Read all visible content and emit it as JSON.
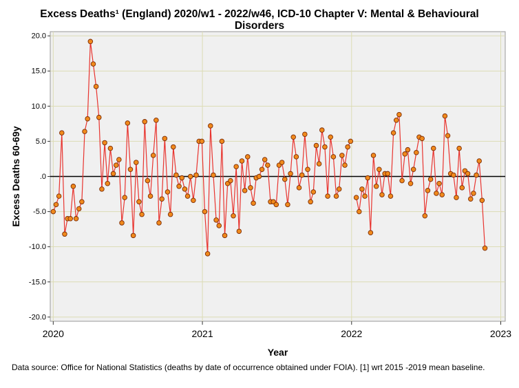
{
  "chart_data": {
    "type": "line",
    "title_line1": "Excess Deaths¹ (England) 2020/w1 - 2022/w46, ICD-10 Chapter V: Mental & Behavioural",
    "title_line2": "Disorders",
    "xlabel": "Year",
    "ylabel": "Excess Deaths 60-69y",
    "xlim": [
      2019.98,
      2023.03
    ],
    "ylim": [
      -20.6,
      20.6
    ],
    "x_ticks": [
      2020,
      2021,
      2022,
      2023
    ],
    "x_tick_labels": [
      "2020",
      "2021",
      "2022",
      "2023"
    ],
    "y_ticks": [
      -20,
      -15,
      -10,
      -5,
      0,
      5,
      10,
      15,
      20
    ],
    "y_tick_labels": [
      "-20.0",
      "-15.0",
      "-10.0",
      "-5.0",
      ".0",
      "5.0",
      "10.0",
      "15.0",
      "20.0"
    ],
    "reference_line": 0,
    "grid": true,
    "line_color": "#e8332e",
    "marker_fill": "#f08a1c",
    "marker_edge": "#7a2a05",
    "series": [
      {
        "name": "Excess deaths 60-69y",
        "start_year": 2020.0,
        "step_weeks": 1,
        "values": [
          -5.0,
          -4.0,
          -2.8,
          6.2,
          -8.2,
          -6.0,
          -6.0,
          -1.4,
          -6.0,
          -4.6,
          -3.6,
          6.4,
          8.2,
          19.2,
          16.0,
          12.8,
          8.4,
          -1.8,
          4.8,
          -1.0,
          4.0,
          0.4,
          1.6,
          2.4,
          -6.6,
          -3.0,
          7.6,
          1.0,
          -8.4,
          2.0,
          -3.6,
          -5.4,
          7.8,
          -0.6,
          -2.8,
          3.0,
          8.0,
          -6.6,
          -3.2,
          5.4,
          -2.2,
          -5.4,
          4.2,
          0.2,
          -1.4,
          -0.2,
          -1.8,
          -2.8,
          0.0,
          -3.4,
          0.2,
          5.0,
          5.0,
          -5.0,
          -11.0,
          7.2,
          0.2,
          -6.2,
          -7.0,
          5.0,
          -8.4,
          -1.0,
          -0.6,
          -5.6,
          1.4,
          -7.8,
          2.2,
          -2.0,
          2.8,
          -1.6,
          -3.8,
          -0.2,
          0.0,
          1.0,
          2.4,
          1.6,
          -3.6,
          -3.6,
          -4.0,
          1.6,
          2.0,
          -0.4,
          -4.0,
          0.4,
          5.6,
          2.8,
          -1.6,
          0.2,
          6.0,
          1.0,
          -3.6,
          -2.2,
          4.4,
          1.8,
          6.6,
          4.2,
          -2.8,
          5.6,
          2.8,
          -2.8,
          -1.8,
          3.0,
          1.6,
          4.2,
          5.0,
          null,
          -3.0,
          -5.0,
          -1.8,
          -2.8,
          -0.2,
          -8.0,
          3.0,
          -1.4,
          1.0,
          -2.6,
          0.4,
          0.4,
          -2.8,
          6.2,
          8.0,
          8.8,
          -0.6,
          3.2,
          3.8,
          -1.0,
          1.0,
          3.4,
          5.6,
          5.4,
          -5.6,
          -2.0,
          -0.4,
          4.0,
          -2.4,
          -1.0,
          -2.6,
          8.6,
          5.8,
          0.4,
          0.2,
          -3.0,
          4.0,
          -1.6,
          0.8,
          0.4,
          -3.2,
          -2.4,
          0.2,
          2.2,
          -3.4,
          -10.2
        ]
      }
    ]
  },
  "footer": {
    "source_text": "Data source: Office for National Statistics (deaths by date of occurrence obtained under FOIA). [1] wrt 2015 -2019 mean baseline."
  }
}
